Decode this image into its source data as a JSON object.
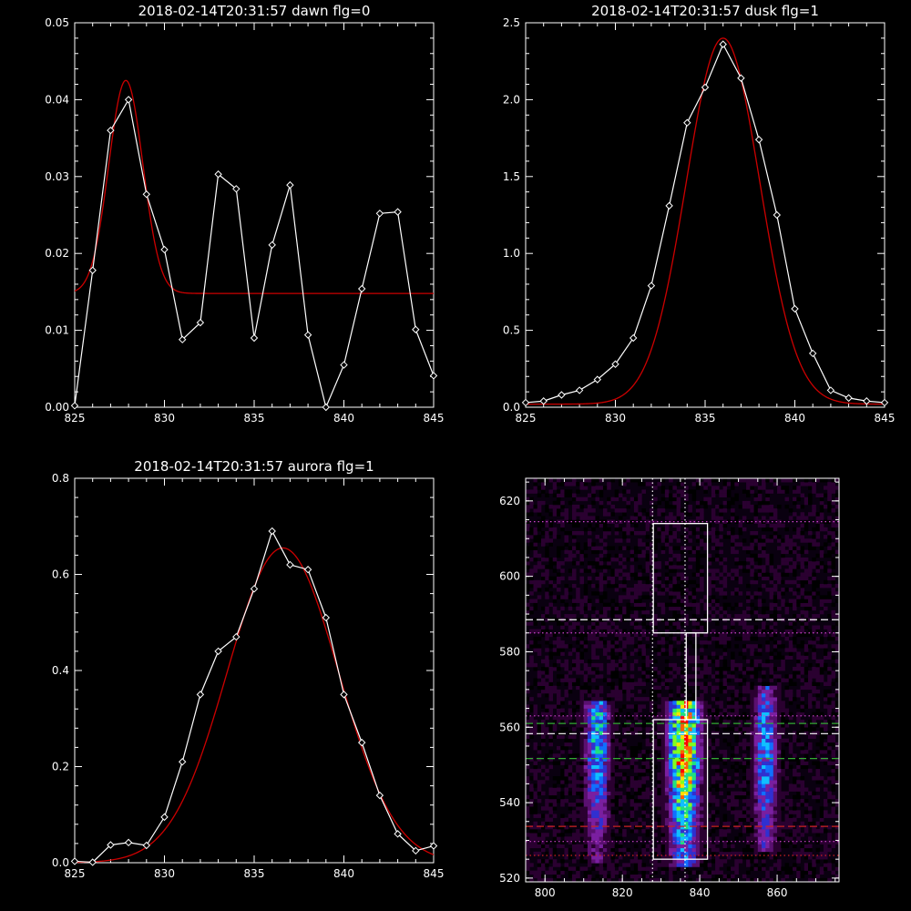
{
  "chart_data": [
    {
      "type": "line",
      "title": "2018-02-14T20:31:57 dawn flg=0",
      "xlim": [
        825,
        845
      ],
      "ylim": [
        0,
        0.05
      ],
      "xticks": [
        825,
        830,
        835,
        840,
        845
      ],
      "yticks": [
        "0.00",
        "0.01",
        "0.02",
        "0.03",
        "0.04",
        "0.05"
      ],
      "yticks_values": [
        0,
        0.01,
        0.02,
        0.03,
        0.04,
        0.05
      ],
      "series": [
        {
          "style": "line-diamond",
          "color": "#ffffff",
          "x": [
            825,
            826,
            827,
            828,
            829,
            830,
            831,
            832,
            833,
            834,
            835,
            836,
            837,
            838,
            839,
            840,
            841,
            842,
            843,
            844,
            845
          ],
          "y": [
            0.0002,
            0.0178,
            0.036,
            0.04,
            0.0277,
            0.0205,
            0.0088,
            0.011,
            0.0303,
            0.0284,
            0.009,
            0.0211,
            0.0289,
            0.0094,
            0.0,
            0.0055,
            0.0154,
            0.0252,
            0.0254,
            0.0101,
            0.0041
          ]
        },
        {
          "style": "gaussian",
          "color": "#cc0000",
          "amplitude": 0.0277,
          "center": 827.85,
          "sigma": 0.95,
          "offset": 0.0148
        }
      ]
    },
    {
      "type": "line",
      "title": "2018-02-14T20:31:57 dusk flg=1",
      "xlim": [
        825,
        845
      ],
      "ylim": [
        0,
        2.5
      ],
      "xticks": [
        825,
        830,
        835,
        840,
        845
      ],
      "yticks": [
        "0.0",
        "0.5",
        "1.0",
        "1.5",
        "2.0",
        "2.5"
      ],
      "yticks_values": [
        0,
        0.5,
        1.0,
        1.5,
        2.0,
        2.5
      ],
      "series": [
        {
          "style": "line-diamond",
          "color": "#ffffff",
          "x": [
            825,
            826,
            827,
            828,
            829,
            830,
            831,
            832,
            833,
            834,
            835,
            836,
            837,
            838,
            839,
            840,
            841,
            842,
            843,
            844,
            845
          ],
          "y": [
            0.03,
            0.04,
            0.08,
            0.11,
            0.18,
            0.28,
            0.45,
            0.79,
            1.31,
            1.85,
            2.08,
            2.36,
            2.14,
            1.74,
            1.25,
            0.64,
            0.35,
            0.11,
            0.06,
            0.04,
            0.03
          ]
        },
        {
          "style": "gaussian",
          "color": "#cc0000",
          "amplitude": 2.38,
          "center": 836.0,
          "sigma": 2.05,
          "offset": 0.02
        }
      ]
    },
    {
      "type": "line",
      "title": "2018-02-14T20:31:57 aurora flg=1",
      "xlim": [
        825,
        845
      ],
      "ylim": [
        0,
        0.8
      ],
      "xticks": [
        825,
        830,
        835,
        840,
        845
      ],
      "yticks": [
        "0.0",
        "0.2",
        "0.4",
        "0.6",
        "0.8"
      ],
      "yticks_values": [
        0,
        0.2,
        0.4,
        0.6,
        0.8
      ],
      "series": [
        {
          "style": "line-diamond",
          "color": "#ffffff",
          "x": [
            825,
            826,
            827,
            828,
            829,
            830,
            831,
            832,
            833,
            834,
            835,
            836,
            837,
            838,
            839,
            840,
            841,
            842,
            843,
            844,
            845
          ],
          "y": [
            0.003,
            0.001,
            0.037,
            0.042,
            0.036,
            0.095,
            0.21,
            0.35,
            0.44,
            0.47,
            0.57,
            0.69,
            0.62,
            0.61,
            0.51,
            0.35,
            0.25,
            0.14,
            0.06,
            0.025,
            0.035
          ]
        },
        {
          "style": "gaussian",
          "color": "#cc0000",
          "amplitude": 0.655,
          "center": 836.6,
          "sigma": 3.1,
          "offset": 0.0
        }
      ]
    },
    {
      "type": "heatmap",
      "xlim": [
        795,
        876
      ],
      "ylim": [
        519,
        626
      ],
      "xticks": [
        800,
        820,
        840,
        860
      ],
      "yticks": [
        520,
        540,
        560,
        580,
        600,
        620
      ],
      "colormap": [
        "#000000",
        "#2a0030",
        "#5a1070",
        "#7a1fa0",
        "#3030d0",
        "#1070ff",
        "#10c0ff",
        "#20e080",
        "#80ff20",
        "#ffe000",
        "#ff6000",
        "#ff0000"
      ],
      "columns": [
        {
          "center": 813.5,
          "width": 7,
          "y_low": 524,
          "y_high": 566,
          "peak": 0.62,
          "peak_y": 557
        },
        {
          "center": 836,
          "width": 9,
          "y_low": 523,
          "y_high": 566,
          "peak": 1.0,
          "peak_y": 555
        },
        {
          "center": 857,
          "width": 7,
          "y_low": 527,
          "y_high": 570,
          "peak": 0.55,
          "peak_y": 552
        }
      ],
      "boxes": [
        {
          "x0": 828,
          "x1": 842,
          "y0": 585,
          "y1": 614,
          "color": "#ffffff"
        },
        {
          "x0": 828,
          "x1": 842,
          "y0": 525,
          "y1": 562,
          "color": "#ffffff"
        },
        {
          "x0": 836.5,
          "x1": 839,
          "y0": 562,
          "y1": 585,
          "color": "#ffffff"
        }
      ],
      "hlines": [
        {
          "y": 614.5,
          "style": "dotted",
          "color": "#cc44cc"
        },
        {
          "y": 588.5,
          "style": "dashed",
          "color": "#ffffff"
        },
        {
          "y": 585,
          "style": "dotted",
          "color": "#cc44cc"
        },
        {
          "y": 563,
          "style": "dotted",
          "color": "#cc44cc"
        },
        {
          "y": 561,
          "style": "dashed",
          "color": "#33aa33"
        },
        {
          "y": 558.3,
          "style": "dashed",
          "color": "#ffffff"
        },
        {
          "y": 551.7,
          "style": "dashed",
          "color": "#33aa33"
        },
        {
          "y": 533.7,
          "style": "dashed",
          "color": "#cc2222"
        },
        {
          "y": 529.7,
          "style": "dotted",
          "color": "#cc44cc"
        },
        {
          "y": 526,
          "style": "dotted",
          "color": "#cc2222"
        }
      ],
      "vlines": [
        {
          "x": 827.8,
          "style": "dotted",
          "color": "#ffffff"
        },
        {
          "x": 836.2,
          "style": "dotted",
          "color": "#ffffff"
        }
      ]
    }
  ]
}
